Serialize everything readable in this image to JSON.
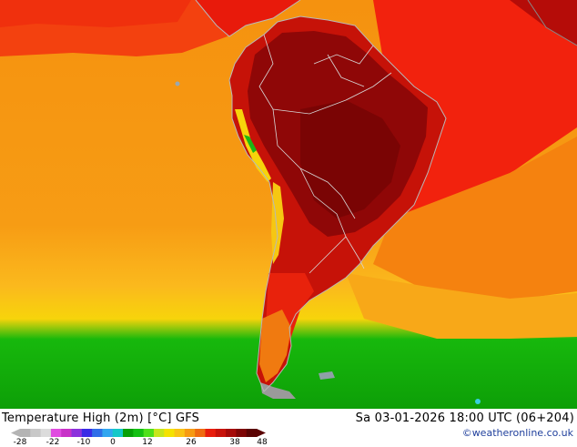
{
  "map": {
    "title": "Temperature High (2m) [°C] GFS",
    "valid_time": "Sa 03-01-2026 18:00 UTC (06+204)",
    "credit": "©weatheronline.co.uk",
    "region": "South America",
    "colors": {
      "ocean_warm": "#f59a12",
      "tropical_atlantic": "#f21a0c",
      "continent_hot": "#8f0707",
      "continent_warm": "#c51008",
      "mid_lat": "#fdb31f",
      "south_yellow": "#f3e400",
      "south_green": "#0ec10b",
      "land_border": "#c8c8c8"
    }
  },
  "legend": {
    "tick_labels": [
      "-28",
      "-22",
      "-10",
      "0",
      "12",
      "26",
      "38",
      "48"
    ],
    "colors": [
      "#b4b4b4",
      "#c8c8c8",
      "#dcdcdc",
      "#e04ce0",
      "#c832c8",
      "#8c32dc",
      "#3a2ce6",
      "#2f6ee8",
      "#31a6f0",
      "#13c8c8",
      "#06a006",
      "#13c013",
      "#4ee01b",
      "#c6e61c",
      "#f4e200",
      "#f9c314",
      "#f69a12",
      "#ef6b10",
      "#e81d0c",
      "#c8120a",
      "#a50a08",
      "#7e0505",
      "#5a0303"
    ]
  }
}
